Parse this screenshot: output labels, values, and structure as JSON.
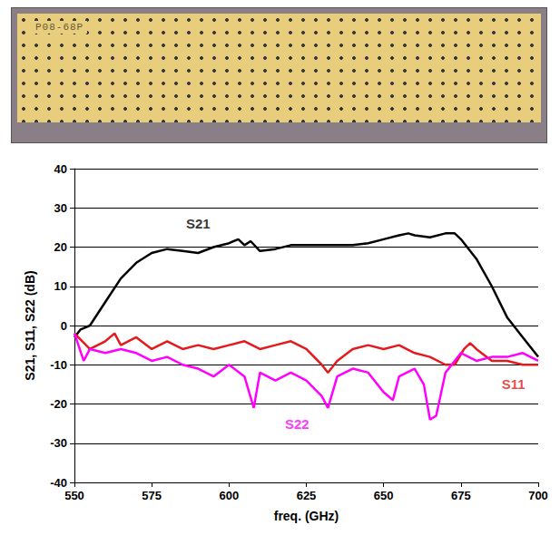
{
  "photo": {
    "label": "P08-68P"
  },
  "chart_data": {
    "type": "line",
    "x_label": "freq. (GHz)",
    "y_label": "S21, S11, S22 (dB)",
    "xlim": [
      550,
      700
    ],
    "xticks": [
      550,
      575,
      600,
      625,
      650,
      675,
      700
    ],
    "ylim": [
      -40,
      40
    ],
    "yticks": [
      -40,
      -30,
      -20,
      -10,
      0,
      10,
      20,
      30,
      40
    ],
    "grid": true,
    "series": [
      {
        "name": "S21",
        "color": "#000000",
        "x": [
          550,
          552,
          555,
          560,
          565,
          570,
          575,
          580,
          585,
          590,
          595,
          600,
          603,
          605,
          607,
          610,
          615,
          620,
          625,
          630,
          635,
          640,
          645,
          650,
          655,
          658,
          660,
          665,
          670,
          673,
          675,
          680,
          685,
          690,
          695,
          700
        ],
        "values": [
          -3,
          -1,
          0,
          6,
          12,
          16,
          18.5,
          19.5,
          19,
          18.5,
          20,
          21,
          22,
          20.5,
          21.5,
          19,
          19.5,
          20.5,
          20.5,
          20.5,
          20.5,
          20.5,
          21,
          22,
          23,
          23.5,
          23,
          22.5,
          23.5,
          23.5,
          22,
          17,
          10,
          2,
          -3,
          -8
        ]
      },
      {
        "name": "S11",
        "color": "#e41a1c",
        "x": [
          550,
          555,
          560,
          563,
          565,
          570,
          575,
          580,
          585,
          590,
          595,
          600,
          605,
          610,
          615,
          620,
          625,
          630,
          632,
          635,
          640,
          645,
          650,
          655,
          660,
          665,
          670,
          673,
          676,
          678,
          680,
          685,
          690,
          695,
          700
        ],
        "values": [
          -2,
          -6,
          -4,
          -2,
          -5,
          -3,
          -6,
          -4,
          -6,
          -5,
          -6,
          -5,
          -4,
          -6,
          -5,
          -4,
          -6,
          -10,
          -12,
          -9,
          -6,
          -5,
          -6,
          -5,
          -7,
          -8,
          -10,
          -10,
          -6,
          -4.5,
          -6,
          -9,
          -9,
          -10,
          -10
        ]
      },
      {
        "name": "S22",
        "color": "#ff00ff",
        "x": [
          550,
          553,
          555,
          560,
          565,
          570,
          575,
          580,
          585,
          590,
          595,
          600,
          605,
          608,
          610,
          615,
          620,
          625,
          630,
          632,
          635,
          640,
          645,
          650,
          653,
          655,
          660,
          663,
          665,
          667,
          670,
          675,
          680,
          685,
          690,
          695,
          700
        ],
        "values": [
          -2,
          -9,
          -6,
          -7,
          -6,
          -7,
          -9,
          -8,
          -10,
          -11,
          -13,
          -10,
          -13,
          -21,
          -12,
          -14,
          -12,
          -14,
          -18,
          -21,
          -13,
          -11,
          -12,
          -17,
          -19,
          -13,
          -11,
          -15,
          -24,
          -23,
          -12,
          -7,
          -9,
          -8,
          -8,
          -7,
          -9
        ]
      }
    ],
    "annotations": [
      {
        "text": "S21",
        "x": 590,
        "y": 26,
        "color": "#000000"
      },
      {
        "text": "S11",
        "x": 692,
        "y": -15,
        "color": "#e41a1c"
      },
      {
        "text": "S22",
        "x": 622,
        "y": -25,
        "color": "#ff00ff"
      }
    ]
  }
}
